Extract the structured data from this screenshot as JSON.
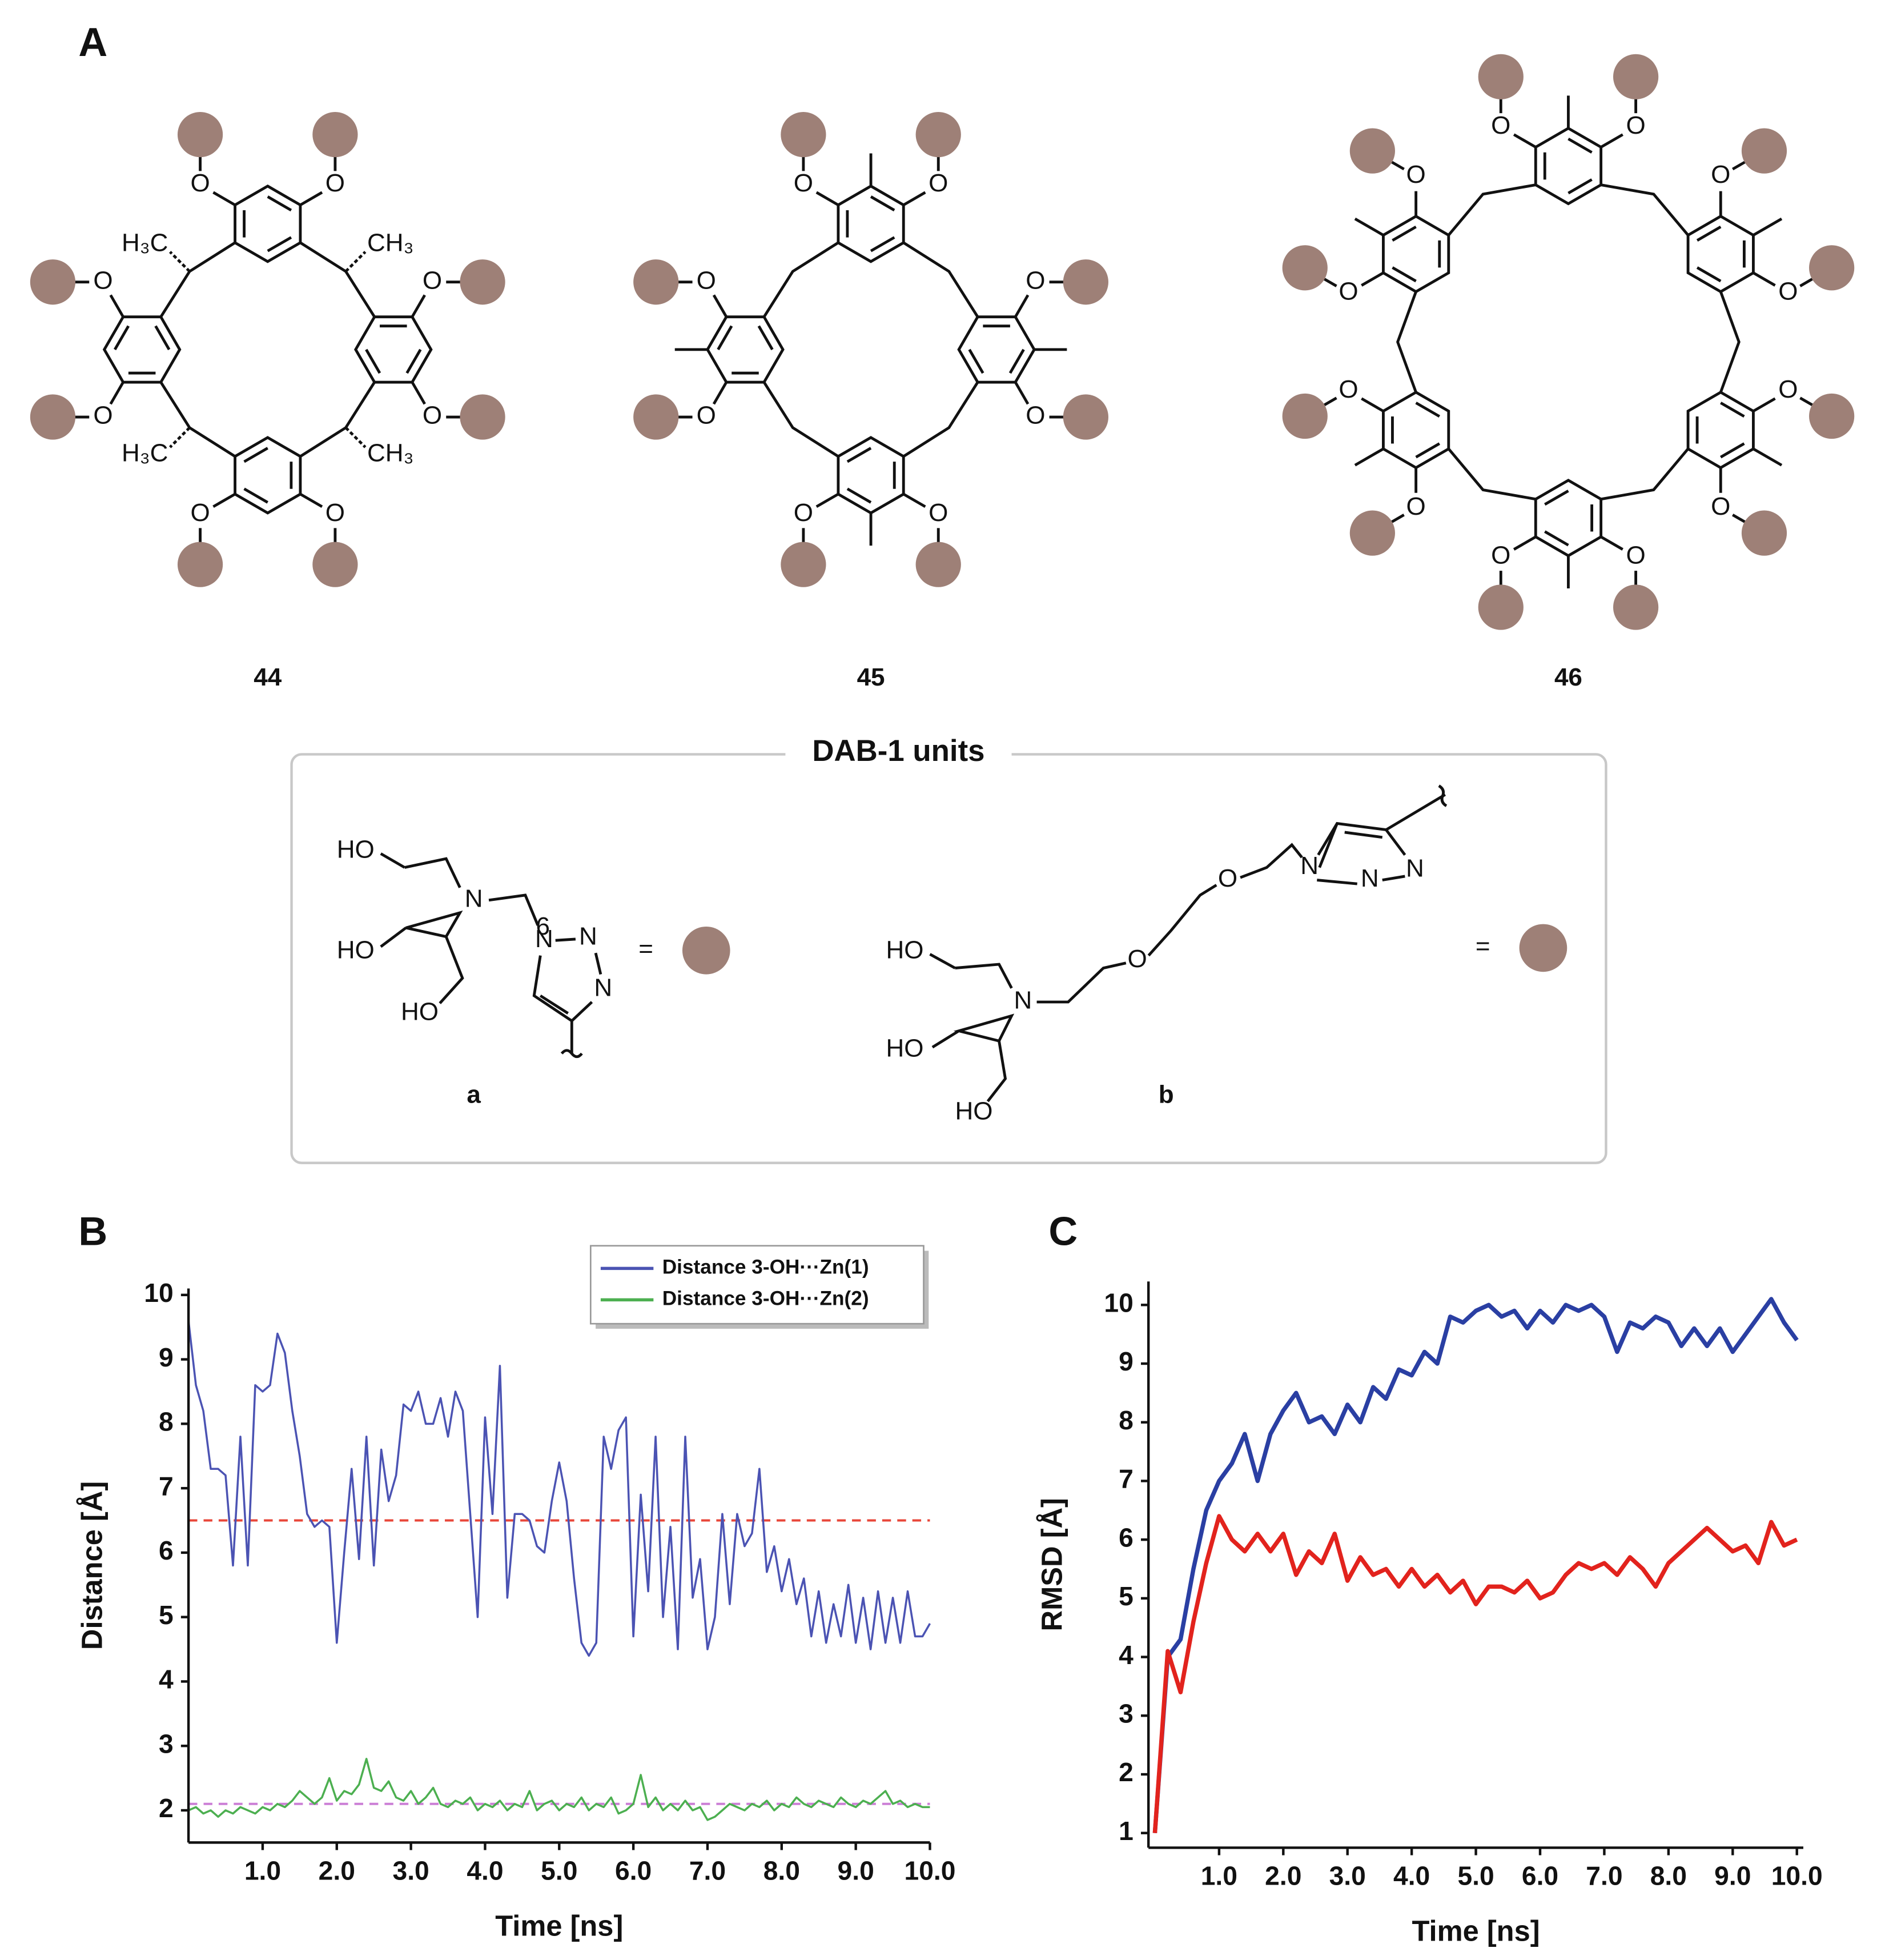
{
  "panel_labels": {
    "a": "A",
    "b": "B",
    "c": "C"
  },
  "structures": [
    {
      "label": "44",
      "oxygens": [
        "O",
        "O",
        "O",
        "O",
        "O",
        "O",
        "O",
        "O"
      ],
      "bridge_groups": [
        "CH₃",
        "CH₃",
        "H₃C",
        "H₃C"
      ]
    },
    {
      "label": "45",
      "oxygens": [
        "O",
        "O",
        "O",
        "O",
        "O",
        "O",
        "O",
        "O"
      ]
    },
    {
      "label": "46",
      "oxygens": [
        "O",
        "O",
        "O",
        "O",
        "O",
        "O",
        "O",
        "O",
        "O",
        "O",
        "O",
        "O"
      ]
    }
  ],
  "dab_units": {
    "title": "DAB-1 units",
    "units": [
      {
        "label": "a",
        "atoms": [
          "HO",
          "HO",
          "N",
          "HO",
          "N",
          "N",
          "N",
          "6"
        ],
        "equals": "="
      },
      {
        "label": "b",
        "atoms": [
          "HO",
          "HO",
          "N",
          "O",
          "O",
          "N",
          "N",
          "N",
          "HO"
        ],
        "equals": "="
      }
    ]
  },
  "chart_data": [
    {
      "type": "line",
      "xlabel": "Time [ns]",
      "ylabel": "Distance [Å]",
      "x": [
        0,
        0.1,
        0.2,
        0.3,
        0.4,
        0.5,
        0.6,
        0.7,
        0.8,
        0.9,
        1,
        1.1,
        1.2,
        1.3,
        1.4,
        1.5,
        1.6,
        1.7,
        1.8,
        1.9,
        2,
        2.1,
        2.2,
        2.3,
        2.4,
        2.5,
        2.6,
        2.7,
        2.8,
        2.9,
        3,
        3.1,
        3.2,
        3.3,
        3.4,
        3.5,
        3.6,
        3.7,
        3.8,
        3.9,
        4,
        4.1,
        4.2,
        4.3,
        4.4,
        4.5,
        4.6,
        4.7,
        4.8,
        4.9,
        5,
        5.1,
        5.2,
        5.3,
        5.4,
        5.5,
        5.6,
        5.7,
        5.8,
        5.9,
        6,
        6.1,
        6.2,
        6.3,
        6.4,
        6.5,
        6.6,
        6.7,
        6.8,
        6.9,
        7,
        7.1,
        7.2,
        7.3,
        7.4,
        7.5,
        7.6,
        7.7,
        7.8,
        7.9,
        8,
        8.1,
        8.2,
        8.3,
        8.4,
        8.5,
        8.6,
        8.7,
        8.8,
        8.9,
        9,
        9.1,
        9.2,
        9.3,
        9.4,
        9.5,
        9.6,
        9.7,
        9.8,
        9.9,
        10
      ],
      "series": [
        {
          "name": "Distance 3-OH···Zn(1)",
          "color": "#4b53b3",
          "values": [
            9.6,
            8.6,
            8.2,
            7.3,
            7.3,
            7.2,
            5.8,
            7.8,
            5.8,
            8.6,
            8.5,
            8.6,
            9.4,
            9.1,
            8.2,
            7.5,
            6.6,
            6.4,
            6.5,
            6.4,
            4.6,
            6.0,
            7.3,
            5.9,
            7.8,
            5.8,
            7.6,
            6.8,
            7.2,
            8.3,
            8.2,
            8.5,
            8.0,
            8.0,
            8.4,
            7.8,
            8.5,
            8.2,
            6.6,
            5.0,
            8.1,
            6.6,
            8.9,
            5.3,
            6.6,
            6.6,
            6.5,
            6.1,
            6.0,
            6.8,
            7.4,
            6.8,
            5.6,
            4.6,
            4.4,
            4.6,
            7.8,
            7.3,
            7.9,
            8.1,
            4.7,
            6.9,
            5.4,
            7.8,
            5.0,
            6.4,
            4.5,
            7.8,
            5.3,
            5.9,
            4.5,
            5.0,
            6.6,
            5.2,
            6.6,
            6.1,
            6.3,
            7.3,
            5.7,
            6.1,
            5.4,
            5.9,
            5.2,
            5.6,
            4.7,
            5.4,
            4.6,
            5.2,
            4.7,
            5.5,
            4.6,
            5.3,
            4.5,
            5.4,
            4.6,
            5.3,
            4.6,
            5.4,
            4.7,
            4.7,
            4.9
          ]
        },
        {
          "name": "Distance 3-OH···Zn(2)",
          "color": "#4caf50",
          "values": [
            2.0,
            2.05,
            1.95,
            2.0,
            1.9,
            2.0,
            1.95,
            2.05,
            2.0,
            1.95,
            2.05,
            2.0,
            2.1,
            2.05,
            2.15,
            2.3,
            2.2,
            2.1,
            2.2,
            2.5,
            2.15,
            2.3,
            2.25,
            2.4,
            2.8,
            2.35,
            2.3,
            2.45,
            2.2,
            2.15,
            2.3,
            2.1,
            2.2,
            2.35,
            2.1,
            2.05,
            2.15,
            2.1,
            2.2,
            2.0,
            2.1,
            2.05,
            2.15,
            2.0,
            2.1,
            2.05,
            2.3,
            2.0,
            2.1,
            2.15,
            2.0,
            2.1,
            2.05,
            2.2,
            2.0,
            2.1,
            2.05,
            2.2,
            1.95,
            2.0,
            2.1,
            2.55,
            2.05,
            2.2,
            2.0,
            2.1,
            2.0,
            2.15,
            2.0,
            2.05,
            1.85,
            1.9,
            2.0,
            2.1,
            2.05,
            2.0,
            2.1,
            2.05,
            2.15,
            2.0,
            2.1,
            2.05,
            2.2,
            2.1,
            2.05,
            2.15,
            2.1,
            2.05,
            2.2,
            2.1,
            2.05,
            2.15,
            2.1,
            2.2,
            2.3,
            2.1,
            2.15,
            2.05,
            2.1,
            2.05,
            2.05
          ]
        }
      ],
      "reference_lines": [
        {
          "value": 6.5,
          "color": "#e8473a"
        },
        {
          "value": 2.1,
          "color": "#cc7fd6"
        }
      ],
      "xlim": [
        0,
        10
      ],
      "ylim": [
        1.5,
        10.1
      ],
      "xticks": [
        {
          "value": 1,
          "label": "1.0"
        },
        {
          "value": 2,
          "label": "2.0"
        },
        {
          "value": 3,
          "label": "3.0"
        },
        {
          "value": 4,
          "label": "4.0"
        },
        {
          "value": 5,
          "label": "5.0"
        },
        {
          "value": 6,
          "label": "6.0"
        },
        {
          "value": 7,
          "label": "7.0"
        },
        {
          "value": 8,
          "label": "8.0"
        },
        {
          "value": 9,
          "label": "9.0"
        },
        {
          "value": 10,
          "label": "10.0"
        }
      ],
      "yticks": [
        2,
        3,
        4,
        5,
        6,
        7,
        8,
        9,
        10
      ],
      "legend": "upper right",
      "line_width": 1.6
    },
    {
      "type": "line",
      "xlabel": "Time [ns]",
      "ylabel": "RMSD [Å]",
      "x": [
        0,
        0.2,
        0.4,
        0.6,
        0.8,
        1,
        1.2,
        1.4,
        1.6,
        1.8,
        2,
        2.2,
        2.4,
        2.6,
        2.8,
        3,
        3.2,
        3.4,
        3.6,
        3.8,
        4,
        4.2,
        4.4,
        4.6,
        4.8,
        5,
        5.2,
        5.4,
        5.6,
        5.8,
        6,
        6.2,
        6.4,
        6.6,
        6.8,
        7,
        7.2,
        7.4,
        7.6,
        7.8,
        8,
        8.2,
        8.4,
        8.6,
        8.8,
        9,
        9.2,
        9.4,
        9.6,
        9.8,
        10
      ],
      "series": [
        {
          "color": "#2a3fa3",
          "values": [
            1.0,
            4.0,
            4.3,
            5.5,
            6.5,
            7.0,
            7.3,
            7.8,
            7.0,
            7.8,
            8.2,
            8.5,
            8.0,
            8.1,
            7.8,
            8.3,
            8.0,
            8.6,
            8.4,
            8.9,
            8.8,
            9.2,
            9.0,
            9.8,
            9.7,
            9.9,
            10.0,
            9.8,
            9.9,
            9.6,
            9.9,
            9.7,
            10.0,
            9.9,
            10.0,
            9.8,
            9.2,
            9.7,
            9.6,
            9.8,
            9.7,
            9.3,
            9.6,
            9.3,
            9.6,
            9.2,
            9.5,
            9.8,
            10.1,
            9.7,
            9.4
          ]
        },
        {
          "color": "#e2231d",
          "values": [
            1.0,
            4.1,
            3.4,
            4.6,
            5.6,
            6.4,
            6.0,
            5.8,
            6.1,
            5.8,
            6.1,
            5.4,
            5.8,
            5.6,
            6.1,
            5.3,
            5.7,
            5.4,
            5.5,
            5.2,
            5.5,
            5.2,
            5.4,
            5.1,
            5.3,
            4.9,
            5.2,
            5.2,
            5.1,
            5.3,
            5.0,
            5.1,
            5.4,
            5.6,
            5.5,
            5.6,
            5.4,
            5.7,
            5.5,
            5.2,
            5.6,
            5.8,
            6.0,
            6.2,
            6.0,
            5.8,
            5.9,
            5.6,
            6.3,
            5.9,
            6.0
          ]
        }
      ],
      "xlim": [
        -0.1,
        10.1
      ],
      "ylim": [
        0.75,
        10.4
      ],
      "xticks": [
        {
          "value": 1,
          "label": "1.0"
        },
        {
          "value": 2,
          "label": "2.0"
        },
        {
          "value": 3,
          "label": "3.0"
        },
        {
          "value": 4,
          "label": "4.0"
        },
        {
          "value": 5,
          "label": "5.0"
        },
        {
          "value": 6,
          "label": "6.0"
        },
        {
          "value": 7,
          "label": "7.0"
        },
        {
          "value": 8,
          "label": "8.0"
        },
        {
          "value": 9,
          "label": "9.0"
        },
        {
          "value": 10,
          "label": "10.0"
        }
      ],
      "yticks": [
        1,
        2,
        3,
        4,
        5,
        6,
        7,
        8,
        9,
        10
      ],
      "line_width": 3.4
    }
  ]
}
